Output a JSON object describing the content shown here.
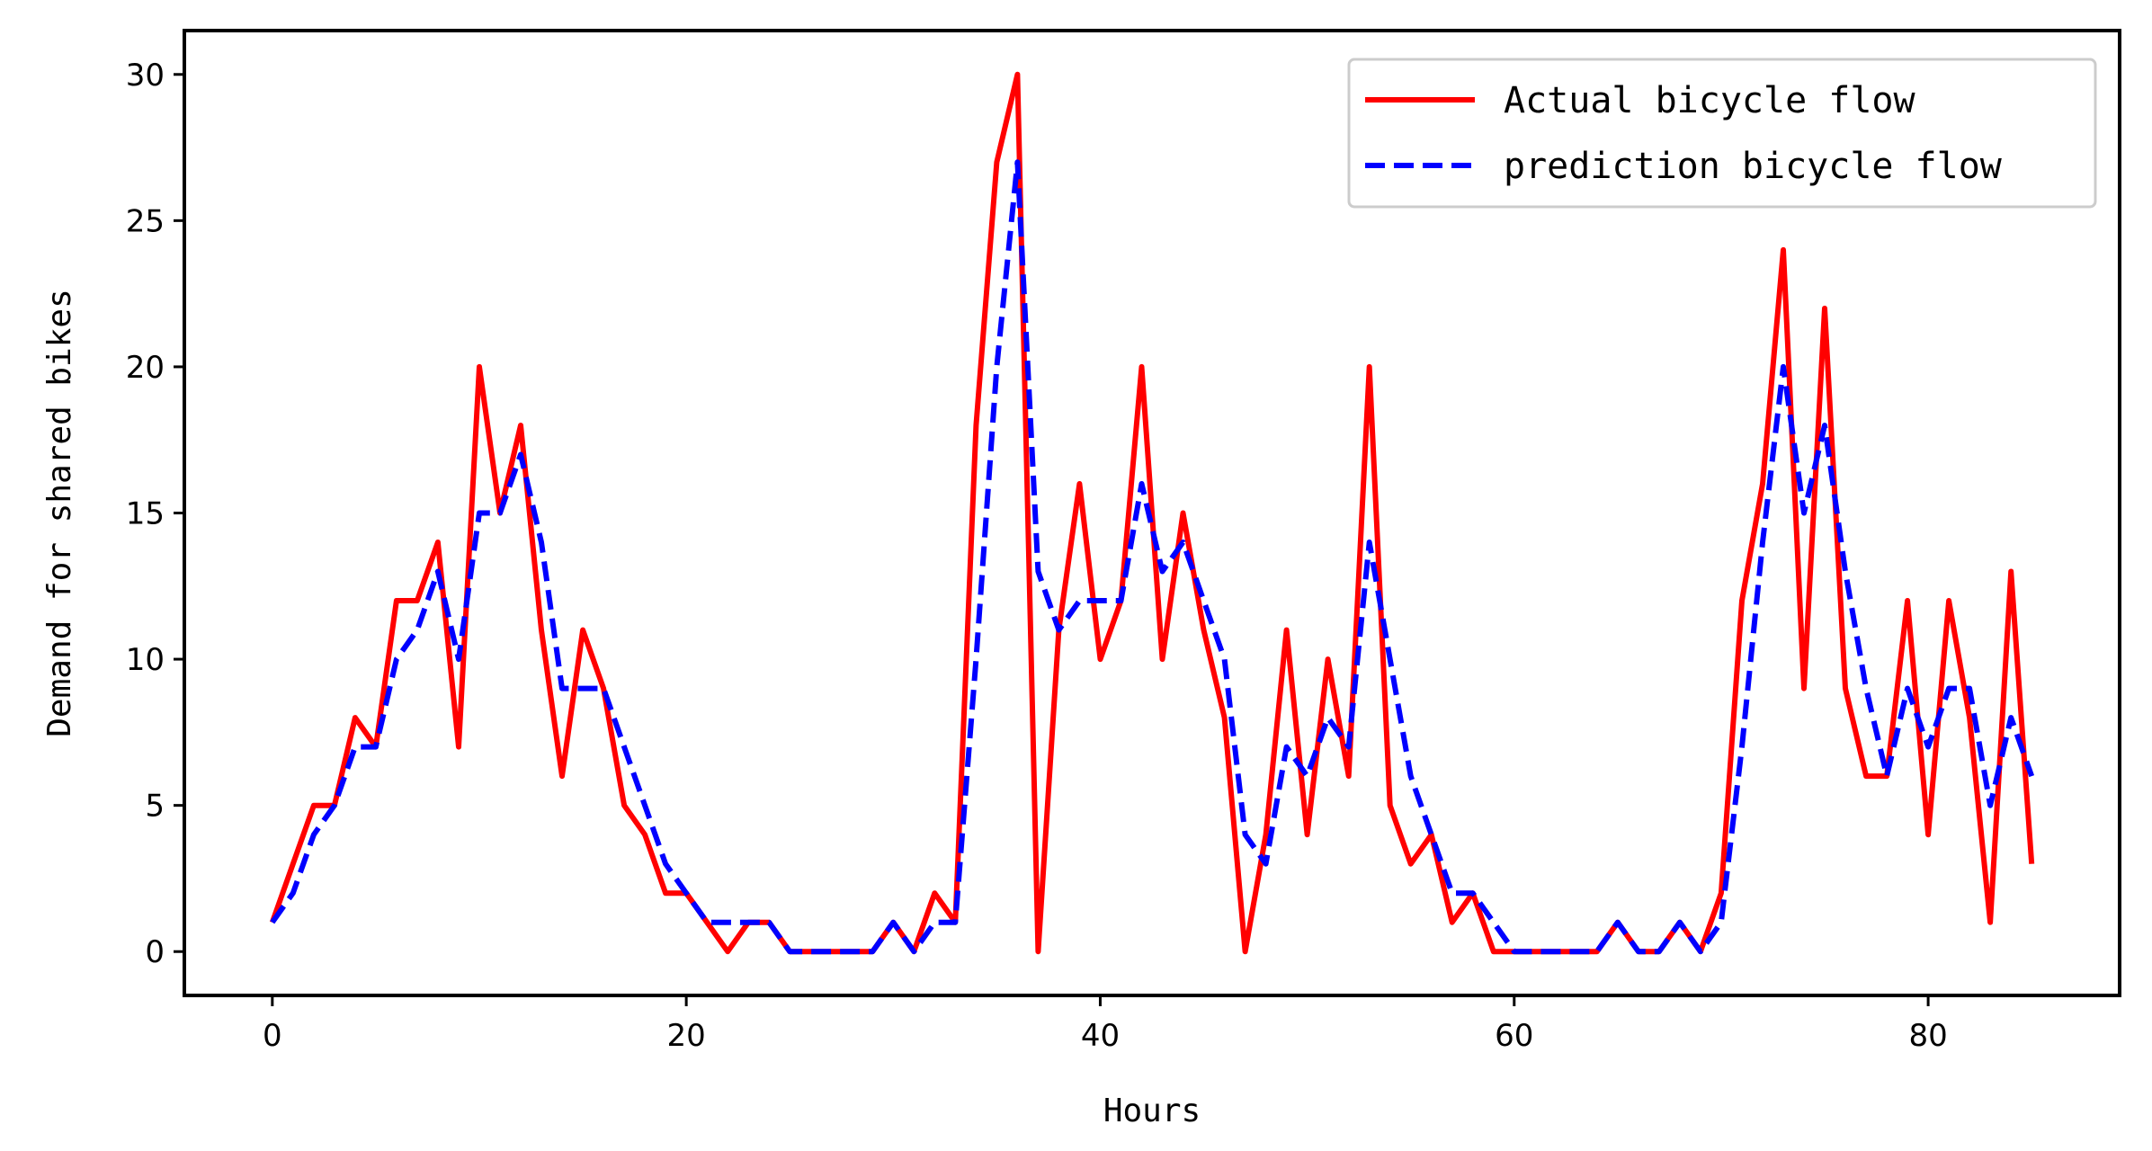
{
  "chart_data": {
    "type": "line",
    "title": "",
    "xlabel": "Hours",
    "ylabel": "Demand for shared bikes",
    "xlim": [
      -4.25,
      89.25
    ],
    "ylim": [
      -1.5,
      31.5
    ],
    "xticks": [
      0,
      20,
      40,
      60,
      80
    ],
    "yticks": [
      0,
      5,
      10,
      15,
      20,
      25,
      30
    ],
    "grid": false,
    "legend_position": "upper right",
    "x": [
      0,
      1,
      2,
      3,
      4,
      5,
      6,
      7,
      8,
      9,
      10,
      11,
      12,
      13,
      14,
      15,
      16,
      17,
      18,
      19,
      20,
      21,
      22,
      23,
      24,
      25,
      26,
      27,
      28,
      29,
      30,
      31,
      32,
      33,
      34,
      35,
      36,
      37,
      38,
      39,
      40,
      41,
      42,
      43,
      44,
      45,
      46,
      47,
      48,
      49,
      50,
      51,
      52,
      53,
      54,
      55,
      56,
      57,
      58,
      59,
      60,
      61,
      62,
      63,
      64,
      65,
      66,
      67,
      68,
      69,
      70,
      71,
      72,
      73,
      74,
      75,
      76,
      77,
      78,
      79,
      80,
      81,
      82,
      83,
      84,
      85
    ],
    "series": [
      {
        "name": "Actual bicycle flow",
        "color": "#ff0000",
        "style": "solid",
        "values": [
          1,
          3,
          5,
          5,
          8,
          7,
          12,
          12,
          14,
          7,
          20,
          15,
          18,
          11,
          6,
          11,
          9,
          5,
          4,
          2,
          2,
          1,
          0,
          1,
          1,
          0,
          0,
          0,
          0,
          0,
          1,
          0,
          2,
          1,
          18,
          27,
          30,
          0,
          11,
          16,
          10,
          12,
          20,
          10,
          15,
          11,
          8,
          0,
          4,
          11,
          4,
          10,
          6,
          20,
          5,
          3,
          4,
          1,
          2,
          0,
          0,
          0,
          0,
          0,
          0,
          1,
          0,
          0,
          1,
          0,
          2,
          12,
          16,
          24,
          9,
          22,
          9,
          6,
          6,
          12,
          4,
          12,
          8,
          1,
          13,
          3
        ]
      },
      {
        "name": "prediction bicycle flow",
        "color": "#0000ff",
        "style": "dashed",
        "values": [
          1,
          2,
          4,
          5,
          7,
          7,
          10,
          11,
          13,
          10,
          15,
          15,
          17,
          14,
          9,
          9,
          9,
          7,
          5,
          3,
          2,
          1,
          1,
          1,
          1,
          0,
          0,
          0,
          0,
          0,
          1,
          0,
          1,
          1,
          10,
          20,
          27,
          13,
          11,
          12,
          12,
          12,
          16,
          13,
          14,
          12,
          10,
          4,
          3,
          7,
          6,
          8,
          7,
          14,
          10,
          6,
          4,
          2,
          2,
          1,
          0,
          0,
          0,
          0,
          0,
          1,
          0,
          0,
          1,
          0,
          1,
          7,
          14,
          20,
          15,
          18,
          13,
          9,
          6,
          9,
          7,
          9,
          9,
          5,
          8,
          6
        ]
      }
    ]
  }
}
